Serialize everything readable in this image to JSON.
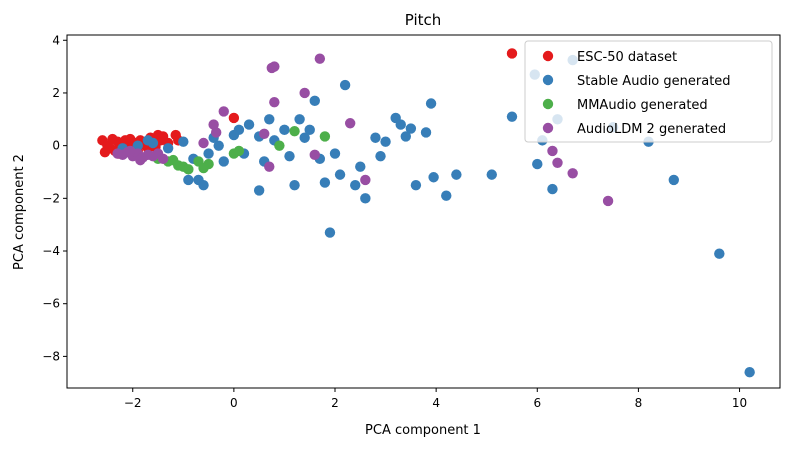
{
  "chart_data": {
    "type": "scatter",
    "title": "Pitch",
    "xlabel": "PCA component 1",
    "ylabel": "PCA component 2",
    "xlim": [
      -3.3,
      10.8
    ],
    "ylim": [
      -9.2,
      4.2
    ],
    "xticks": [
      -2,
      0,
      2,
      4,
      6,
      8,
      10
    ],
    "yticks": [
      -8,
      -6,
      -4,
      -2,
      0,
      2,
      4
    ],
    "xtick_labels": [
      "−2",
      "0",
      "2",
      "4",
      "6",
      "8",
      "10"
    ],
    "ytick_labels": [
      "−8",
      "−6",
      "−4",
      "−2",
      "0",
      "2",
      "4"
    ],
    "grid": false,
    "legend_position": "top-right",
    "series": [
      {
        "name": "ESC-50 dataset",
        "color": "#e41a1c",
        "points": [
          [
            -2.6,
            0.2
          ],
          [
            -2.5,
            0.0
          ],
          [
            -2.45,
            -0.1
          ],
          [
            -2.4,
            0.25
          ],
          [
            -2.35,
            -0.2
          ],
          [
            -2.3,
            0.15
          ],
          [
            -2.25,
            0.05
          ],
          [
            -2.2,
            -0.15
          ],
          [
            -2.15,
            0.2
          ],
          [
            -2.1,
            0.0
          ],
          [
            -2.05,
            0.25
          ],
          [
            -2.0,
            -0.05
          ],
          [
            -1.95,
            0.1
          ],
          [
            -1.9,
            -0.2
          ],
          [
            -1.85,
            0.2
          ],
          [
            -1.8,
            0.05
          ],
          [
            -1.7,
            -0.1
          ],
          [
            -1.65,
            0.3
          ],
          [
            -1.6,
            0.15
          ],
          [
            -1.55,
            -0.05
          ],
          [
            -1.5,
            0.4
          ],
          [
            -1.45,
            0.2
          ],
          [
            -1.4,
            0.35
          ],
          [
            -1.3,
            0.1
          ],
          [
            -1.15,
            0.4
          ],
          [
            -1.1,
            0.2
          ],
          [
            0.0,
            1.05
          ],
          [
            5.5,
            3.5
          ],
          [
            -2.55,
            -0.25
          ],
          [
            -2.28,
            -0.3
          ]
        ]
      },
      {
        "name": "Stable Audio generated",
        "color": "#377eb8",
        "points": [
          [
            -2.2,
            -0.1
          ],
          [
            -1.9,
            0.0
          ],
          [
            -1.6,
            0.1
          ],
          [
            -1.3,
            -0.1
          ],
          [
            -1.0,
            0.15
          ],
          [
            -0.8,
            -0.5
          ],
          [
            -0.7,
            -1.3
          ],
          [
            -0.6,
            -1.5
          ],
          [
            -0.5,
            -0.3
          ],
          [
            -0.4,
            0.3
          ],
          [
            -0.2,
            -0.6
          ],
          [
            0.1,
            0.6
          ],
          [
            0.3,
            0.8
          ],
          [
            0.5,
            0.35
          ],
          [
            0.6,
            -0.6
          ],
          [
            0.8,
            0.2
          ],
          [
            1.0,
            0.6
          ],
          [
            1.1,
            -0.4
          ],
          [
            1.2,
            -1.5
          ],
          [
            1.4,
            0.3
          ],
          [
            1.5,
            0.6
          ],
          [
            1.6,
            1.7
          ],
          [
            1.7,
            -0.5
          ],
          [
            1.8,
            -1.4
          ],
          [
            1.9,
            -3.3
          ],
          [
            2.0,
            -0.3
          ],
          [
            2.2,
            2.3
          ],
          [
            2.4,
            -1.5
          ],
          [
            2.5,
            -0.8
          ],
          [
            2.6,
            -2.0
          ],
          [
            2.8,
            0.3
          ],
          [
            3.0,
            0.15
          ],
          [
            3.2,
            1.05
          ],
          [
            3.3,
            0.8
          ],
          [
            3.5,
            0.65
          ],
          [
            3.6,
            -1.5
          ],
          [
            3.8,
            0.5
          ],
          [
            3.9,
            1.6
          ],
          [
            3.95,
            -1.2
          ],
          [
            4.2,
            -1.9
          ],
          [
            4.4,
            -1.1
          ],
          [
            5.1,
            -1.1
          ],
          [
            5.5,
            1.1
          ],
          [
            5.95,
            2.7
          ],
          [
            6.0,
            -0.7
          ],
          [
            6.1,
            0.2
          ],
          [
            6.3,
            -1.65
          ],
          [
            6.4,
            1.0
          ],
          [
            6.7,
            3.25
          ],
          [
            7.5,
            0.7
          ],
          [
            8.2,
            0.15
          ],
          [
            8.7,
            -1.3
          ],
          [
            9.6,
            -4.1
          ],
          [
            10.2,
            -8.6
          ],
          [
            0.5,
            -1.7
          ],
          [
            -0.3,
            0.0
          ],
          [
            0.0,
            0.4
          ],
          [
            0.7,
            1.0
          ],
          [
            2.9,
            -0.4
          ],
          [
            3.4,
            0.35
          ],
          [
            -0.9,
            -1.3
          ],
          [
            1.3,
            1.0
          ],
          [
            2.1,
            -1.1
          ],
          [
            -1.7,
            0.2
          ],
          [
            0.2,
            -0.3
          ]
        ]
      },
      {
        "name": "MMAudio generated",
        "color": "#4daf4a",
        "points": [
          [
            -1.5,
            -0.5
          ],
          [
            -1.3,
            -0.6
          ],
          [
            -1.1,
            -0.75
          ],
          [
            -1.0,
            -0.8
          ],
          [
            -0.9,
            -0.9
          ],
          [
            -0.7,
            -0.6
          ],
          [
            -0.5,
            -0.7
          ],
          [
            0.0,
            -0.3
          ],
          [
            0.1,
            -0.2
          ],
          [
            0.9,
            0.0
          ],
          [
            1.2,
            0.55
          ],
          [
            1.8,
            0.35
          ],
          [
            -1.2,
            -0.55
          ],
          [
            -0.6,
            -0.85
          ]
        ]
      },
      {
        "name": "AudioLDM 2 generated",
        "color": "#984ea3",
        "points": [
          [
            -2.3,
            -0.3
          ],
          [
            -2.2,
            -0.35
          ],
          [
            -2.1,
            -0.25
          ],
          [
            -2.0,
            -0.4
          ],
          [
            -1.9,
            -0.3
          ],
          [
            -1.8,
            -0.45
          ],
          [
            -1.7,
            -0.35
          ],
          [
            -1.6,
            -0.4
          ],
          [
            -1.5,
            -0.3
          ],
          [
            -1.4,
            -0.5
          ],
          [
            -0.6,
            0.1
          ],
          [
            -0.4,
            0.8
          ],
          [
            -0.35,
            0.5
          ],
          [
            -0.2,
            1.3
          ],
          [
            0.6,
            0.45
          ],
          [
            0.7,
            -0.8
          ],
          [
            0.75,
            2.95
          ],
          [
            0.8,
            3.0
          ],
          [
            0.8,
            1.65
          ],
          [
            1.4,
            2.0
          ],
          [
            1.6,
            -0.35
          ],
          [
            1.7,
            3.3
          ],
          [
            2.3,
            0.85
          ],
          [
            2.6,
            -1.3
          ],
          [
            6.3,
            -0.2
          ],
          [
            6.4,
            -0.65
          ],
          [
            6.7,
            -1.05
          ],
          [
            7.4,
            -2.1
          ],
          [
            -1.85,
            -0.55
          ],
          [
            -2.05,
            -0.2
          ]
        ]
      }
    ]
  }
}
